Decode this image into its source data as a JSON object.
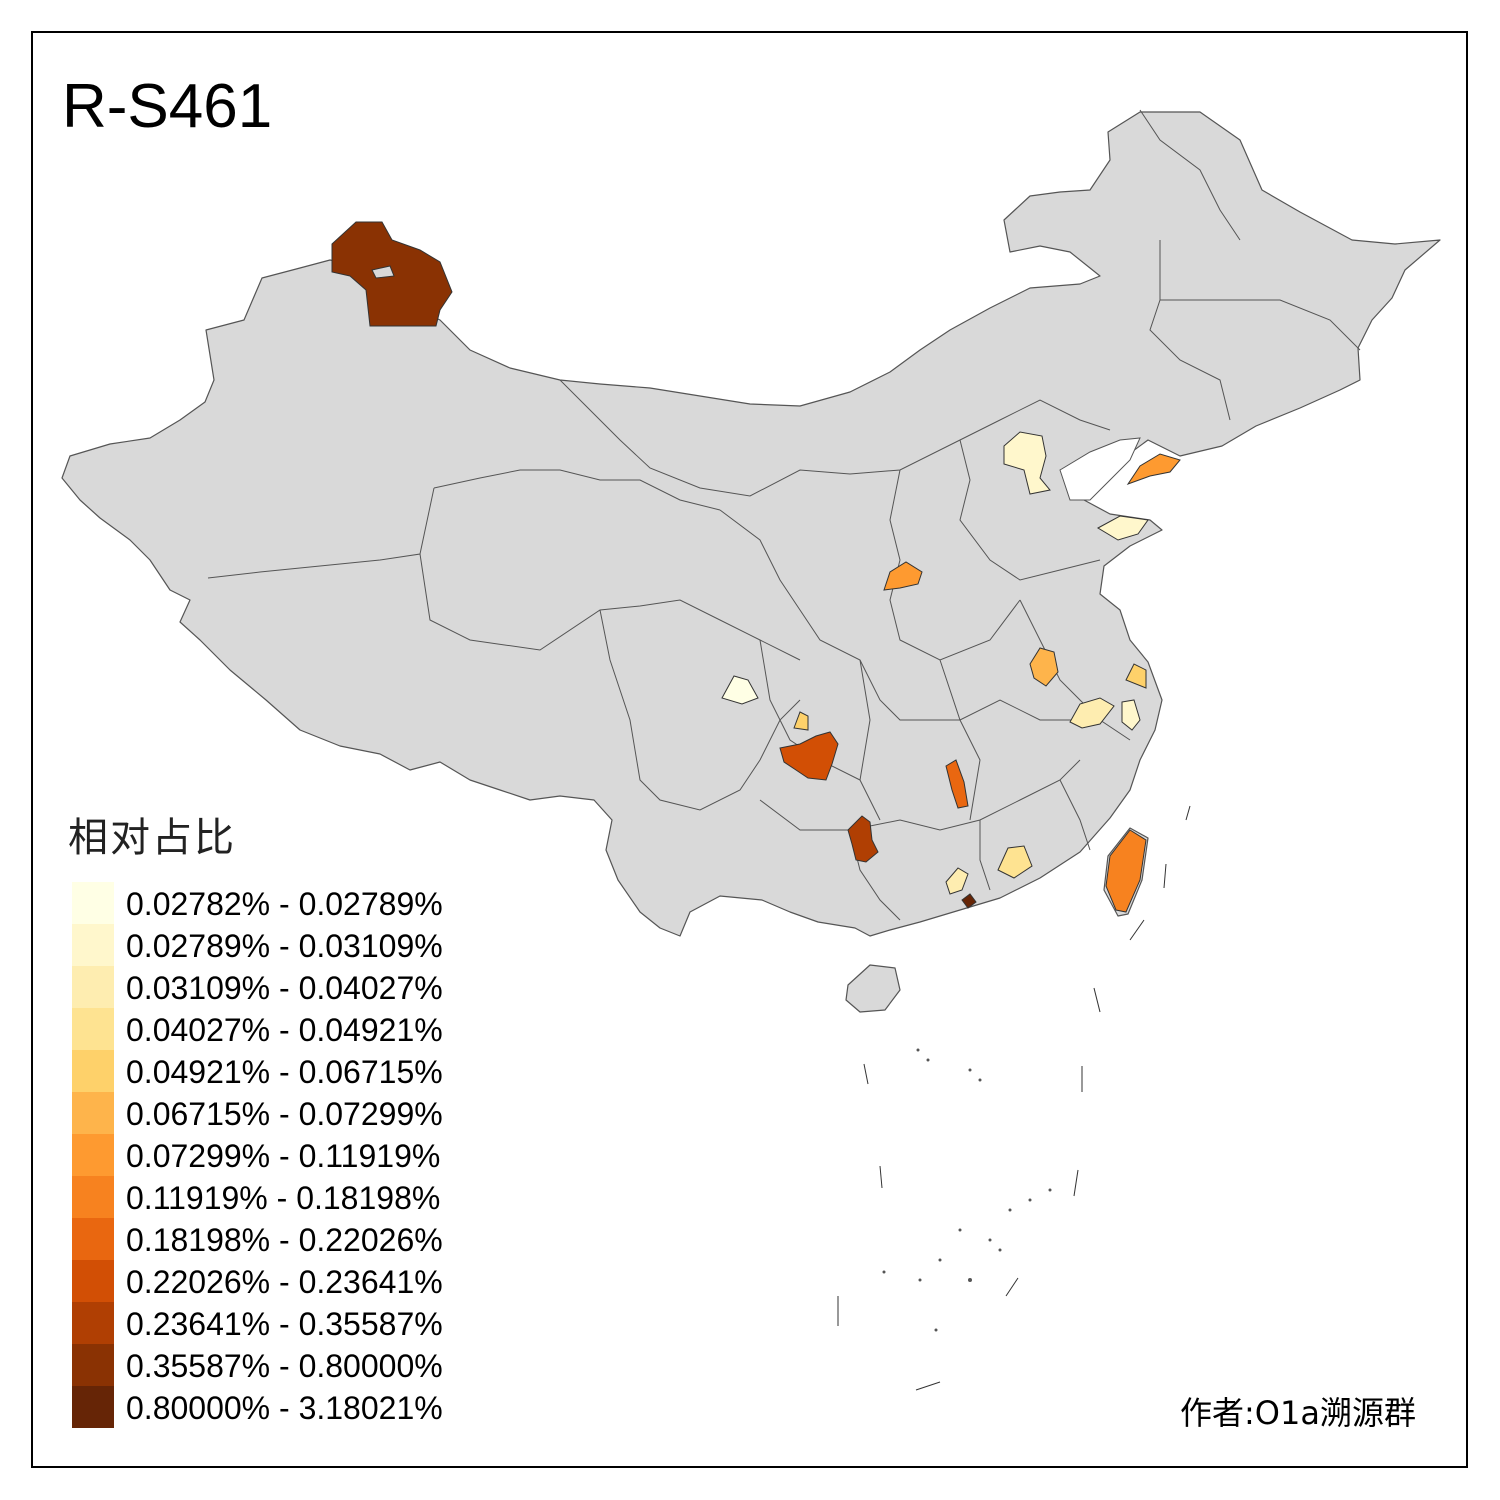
{
  "map": {
    "title": "R-S461",
    "legend_title": "相对占比",
    "author": "作者:O1a溯源群",
    "base_fill": "#d9d9d9",
    "border_color": "#555555",
    "legend": [
      {
        "label": "0.02782% - 0.02789%",
        "color": "#ffffe5"
      },
      {
        "label": "0.02789% - 0.03109%",
        "color": "#fff7cc"
      },
      {
        "label": "0.03109% - 0.04027%",
        "color": "#feedb0"
      },
      {
        "label": "0.04027% - 0.04921%",
        "color": "#fee391"
      },
      {
        "label": "0.04921% - 0.06715%",
        "color": "#fed16a"
      },
      {
        "label": "0.06715% - 0.07299%",
        "color": "#feb44b"
      },
      {
        "label": "0.07299% - 0.11919%",
        "color": "#fe9a30"
      },
      {
        "label": "0.11919% - 0.18198%",
        "color": "#f7821f"
      },
      {
        "label": "0.18198% - 0.22026%",
        "color": "#e96710"
      },
      {
        "label": "0.22026% - 0.23641%",
        "color": "#d24f05"
      },
      {
        "label": "0.23641% - 0.35587%",
        "color": "#b03f03"
      },
      {
        "label": "0.35587% - 0.80000%",
        "color": "#8a3203"
      },
      {
        "label": "0.80000% - 3.18021%",
        "color": "#662506"
      }
    ]
  }
}
